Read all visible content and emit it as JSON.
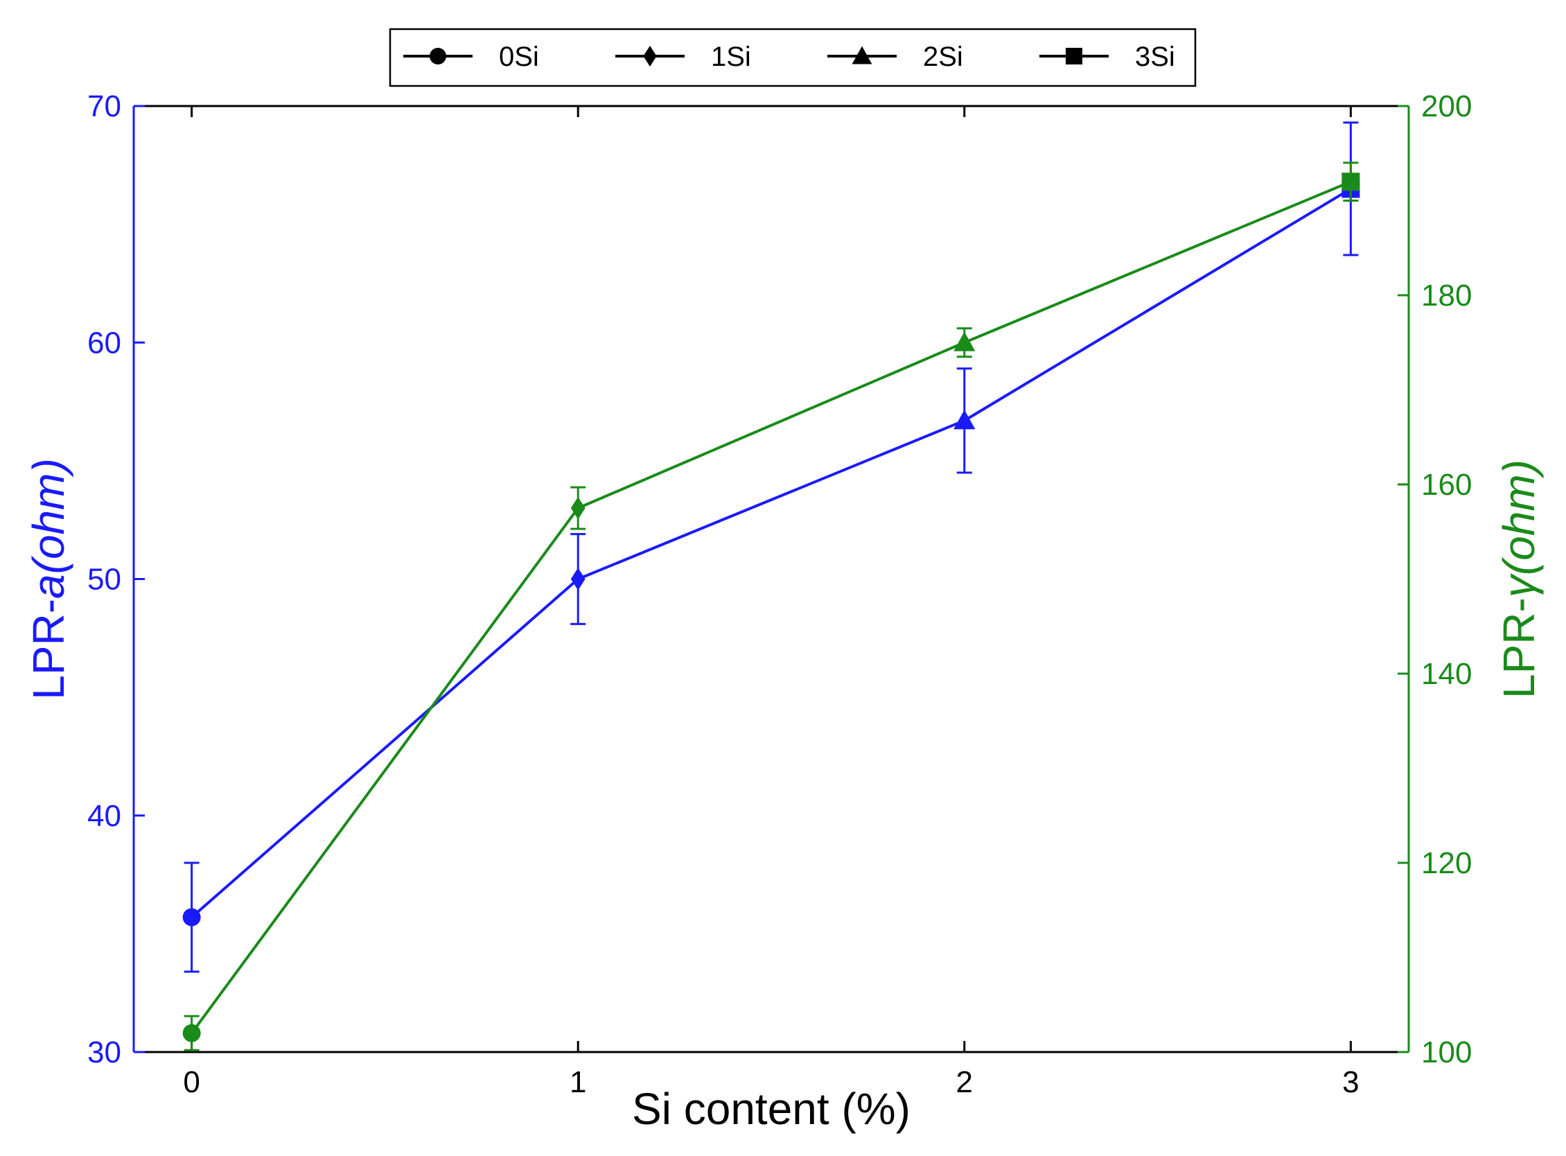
{
  "chart_data": {
    "type": "line",
    "x": [
      0,
      1,
      2,
      3
    ],
    "xticks": [
      "0",
      "1",
      "2",
      "3"
    ],
    "xlabel": "Si content (%)",
    "xlim": [
      -0.15,
      3.15
    ],
    "left_axis": {
      "label_prefix": "LPR-",
      "label_symbol": "a",
      "label_unit": "(ohm)",
      "ylim": [
        30,
        70
      ],
      "ticks": [
        30,
        40,
        50,
        60,
        70
      ],
      "color": "#1a1aff"
    },
    "right_axis": {
      "label_prefix": "LPR-",
      "label_symbol": "γ",
      "label_unit": "(ohm)",
      "ylim": [
        100,
        200
      ],
      "ticks": [
        100,
        120,
        140,
        160,
        180,
        200
      ],
      "color": "#1a8a1a"
    },
    "series": [
      {
        "axis": "left",
        "color": "#1a1aff",
        "values": [
          35.7,
          50.0,
          56.7,
          66.5
        ],
        "errors": [
          2.3,
          1.9,
          2.2,
          2.8
        ],
        "markers": [
          "circle",
          "diamond",
          "triangle",
          "square"
        ]
      },
      {
        "axis": "right",
        "color": "#1a8a1a",
        "values": [
          102,
          157.5,
          175.0,
          192.0
        ],
        "errors": [
          1.8,
          2.2,
          1.5,
          2.0
        ],
        "markers": [
          "circle",
          "diamond",
          "triangle",
          "square"
        ]
      }
    ],
    "legend": {
      "position": "top-center",
      "entries": [
        {
          "label": "0Si",
          "marker": "circle"
        },
        {
          "label": "1Si",
          "marker": "diamond"
        },
        {
          "label": "2Si",
          "marker": "triangle"
        },
        {
          "label": "3Si",
          "marker": "square"
        }
      ]
    }
  }
}
